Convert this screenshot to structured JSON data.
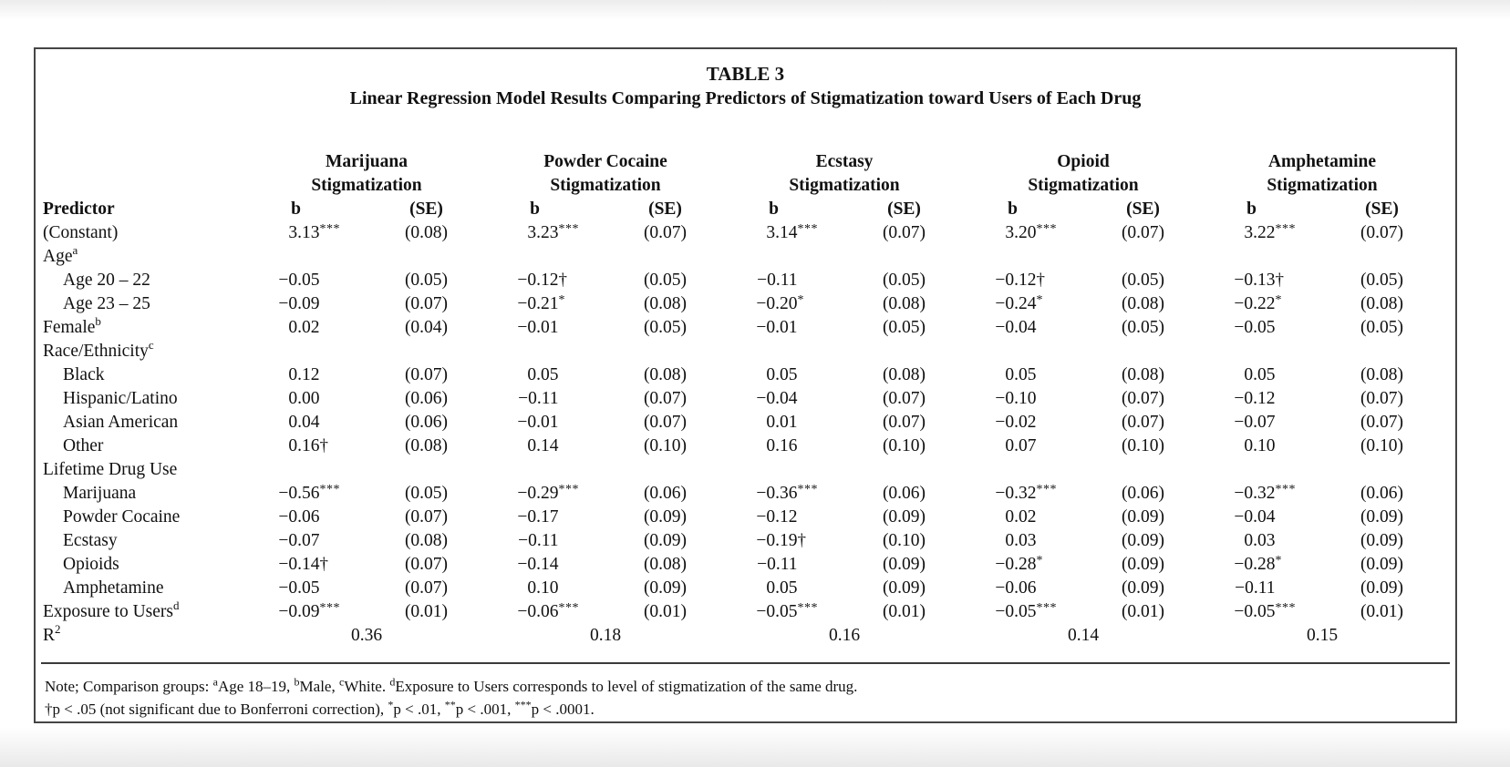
{
  "page": {
    "paper_bg": "#ffffff",
    "border_color": "#454545",
    "text_color": "#111111"
  },
  "table": {
    "title": "TABLE 3",
    "subtitle": "Linear Regression Model Results Comparing Predictors of Stigmatization toward Users of Each Drug",
    "col_headers": {
      "predictor": "Predictor",
      "b": "b",
      "se": "(SE)"
    },
    "group_line2": "Stigmatization",
    "groups": [
      "Marijuana",
      "Powder Cocaine",
      "Ecstasy",
      "Opioid",
      "Amphetamine"
    ],
    "rows": [
      {
        "label": "(Constant)",
        "sup": "",
        "indent": false,
        "cells": [
          [
            "3.13",
            "***",
            "(0.08)"
          ],
          [
            "3.23",
            "***",
            "(0.07)"
          ],
          [
            "3.14",
            "***",
            "(0.07)"
          ],
          [
            "3.20",
            "***",
            "(0.07)"
          ],
          [
            "3.22",
            "***",
            "(0.07)"
          ]
        ]
      },
      {
        "label": "Age",
        "sup": "a",
        "indent": false,
        "cells": null
      },
      {
        "label": "Age 20 – 22",
        "sup": "",
        "indent": true,
        "cells": [
          [
            "−0.05",
            "",
            "(0.05)"
          ],
          [
            "−0.12",
            "†",
            "(0.05)"
          ],
          [
            "−0.11",
            "",
            "(0.05)"
          ],
          [
            "−0.12",
            "†",
            "(0.05)"
          ],
          [
            "−0.13",
            "†",
            "(0.05)"
          ]
        ]
      },
      {
        "label": "Age 23 – 25",
        "sup": "",
        "indent": true,
        "cells": [
          [
            "−0.09",
            "",
            "(0.07)"
          ],
          [
            "−0.21",
            "*",
            "(0.08)"
          ],
          [
            "−0.20",
            "*",
            "(0.08)"
          ],
          [
            "−0.24",
            "*",
            "(0.08)"
          ],
          [
            "−0.22",
            "*",
            "(0.08)"
          ]
        ]
      },
      {
        "label": "Female",
        "sup": "b",
        "indent": false,
        "cells": [
          [
            "0.02",
            "",
            "(0.04)"
          ],
          [
            "−0.01",
            "",
            "(0.05)"
          ],
          [
            "−0.01",
            "",
            "(0.05)"
          ],
          [
            "−0.04",
            "",
            "(0.05)"
          ],
          [
            "−0.05",
            "",
            "(0.05)"
          ]
        ]
      },
      {
        "label": "Race/Ethnicity",
        "sup": "c",
        "indent": false,
        "cells": null
      },
      {
        "label": "Black",
        "sup": "",
        "indent": true,
        "cells": [
          [
            "0.12",
            "",
            "(0.07)"
          ],
          [
            "0.05",
            "",
            "(0.08)"
          ],
          [
            "0.05",
            "",
            "(0.08)"
          ],
          [
            "0.05",
            "",
            "(0.08)"
          ],
          [
            "0.05",
            "",
            "(0.08)"
          ]
        ]
      },
      {
        "label": "Hispanic/Latino",
        "sup": "",
        "indent": true,
        "cells": [
          [
            "0.00",
            "",
            "(0.06)"
          ],
          [
            "−0.11",
            "",
            "(0.07)"
          ],
          [
            "−0.04",
            "",
            "(0.07)"
          ],
          [
            "−0.10",
            "",
            "(0.07)"
          ],
          [
            "−0.12",
            "",
            "(0.07)"
          ]
        ]
      },
      {
        "label": "Asian American",
        "sup": "",
        "indent": true,
        "cells": [
          [
            "0.04",
            "",
            "(0.06)"
          ],
          [
            "−0.01",
            "",
            "(0.07)"
          ],
          [
            "0.01",
            "",
            "(0.07)"
          ],
          [
            "−0.02",
            "",
            "(0.07)"
          ],
          [
            "−0.07",
            "",
            "(0.07)"
          ]
        ]
      },
      {
        "label": "Other",
        "sup": "",
        "indent": true,
        "cells": [
          [
            "0.16",
            "†",
            "(0.08)"
          ],
          [
            "0.14",
            "",
            "(0.10)"
          ],
          [
            "0.16",
            "",
            "(0.10)"
          ],
          [
            "0.07",
            "",
            "(0.10)"
          ],
          [
            "0.10",
            "",
            "(0.10)"
          ]
        ]
      },
      {
        "label": "Lifetime Drug Use",
        "sup": "",
        "indent": false,
        "cells": null
      },
      {
        "label": "Marijuana",
        "sup": "",
        "indent": true,
        "cells": [
          [
            "−0.56",
            "***",
            "(0.05)"
          ],
          [
            "−0.29",
            "***",
            "(0.06)"
          ],
          [
            "−0.36",
            "***",
            "(0.06)"
          ],
          [
            "−0.32",
            "***",
            "(0.06)"
          ],
          [
            "−0.32",
            "***",
            "(0.06)"
          ]
        ]
      },
      {
        "label": "Powder Cocaine",
        "sup": "",
        "indent": true,
        "cells": [
          [
            "−0.06",
            "",
            "(0.07)"
          ],
          [
            "−0.17",
            "",
            "(0.09)"
          ],
          [
            "−0.12",
            "",
            "(0.09)"
          ],
          [
            "0.02",
            "",
            "(0.09)"
          ],
          [
            "−0.04",
            "",
            "(0.09)"
          ]
        ]
      },
      {
        "label": "Ecstasy",
        "sup": "",
        "indent": true,
        "cells": [
          [
            "−0.07",
            "",
            "(0.08)"
          ],
          [
            "−0.11",
            "",
            "(0.09)"
          ],
          [
            "−0.19",
            "†",
            "(0.10)"
          ],
          [
            "0.03",
            "",
            "(0.09)"
          ],
          [
            "0.03",
            "",
            "(0.09)"
          ]
        ]
      },
      {
        "label": "Opioids",
        "sup": "",
        "indent": true,
        "cells": [
          [
            "−0.14",
            "†",
            "(0.07)"
          ],
          [
            "−0.14",
            "",
            "(0.08)"
          ],
          [
            "−0.11",
            "",
            "(0.09)"
          ],
          [
            "−0.28",
            "*",
            "(0.09)"
          ],
          [
            "−0.28",
            "*",
            "(0.09)"
          ]
        ]
      },
      {
        "label": "Amphetamine",
        "sup": "",
        "indent": true,
        "cells": [
          [
            "−0.05",
            "",
            "(0.07)"
          ],
          [
            "0.10",
            "",
            "(0.09)"
          ],
          [
            "0.05",
            "",
            "(0.09)"
          ],
          [
            "−0.06",
            "",
            "(0.09)"
          ],
          [
            "−0.11",
            "",
            "(0.09)"
          ]
        ]
      },
      {
        "label": "Exposure to Users",
        "sup": "d",
        "indent": false,
        "cells": [
          [
            "−0.09",
            "***",
            "(0.01)"
          ],
          [
            "−0.06",
            "***",
            "(0.01)"
          ],
          [
            "−0.05",
            "***",
            "(0.01)"
          ],
          [
            "−0.05",
            "***",
            "(0.01)"
          ],
          [
            "−0.05",
            "***",
            "(0.01)"
          ]
        ]
      }
    ],
    "r2": {
      "base": "R",
      "sup": "2",
      "values": [
        "0.36",
        "0.18",
        "0.16",
        "0.14",
        "0.15"
      ]
    },
    "notes": [
      [
        {
          "t": "Note; Comparison groups: "
        },
        {
          "s": "a"
        },
        {
          "t": "Age 18–19, "
        },
        {
          "s": "b"
        },
        {
          "t": "Male, "
        },
        {
          "s": "c"
        },
        {
          "t": "White. "
        },
        {
          "s": "d"
        },
        {
          "t": "Exposure to Users corresponds to level of stigmatization of the same drug."
        }
      ],
      [
        {
          "t": "†p < .05 (not significant due to Bonferroni correction), "
        },
        {
          "s": "*"
        },
        {
          "t": "p < .01, "
        },
        {
          "s": "**"
        },
        {
          "t": "p < .001, "
        },
        {
          "s": "***"
        },
        {
          "t": "p < .0001."
        }
      ]
    ]
  }
}
